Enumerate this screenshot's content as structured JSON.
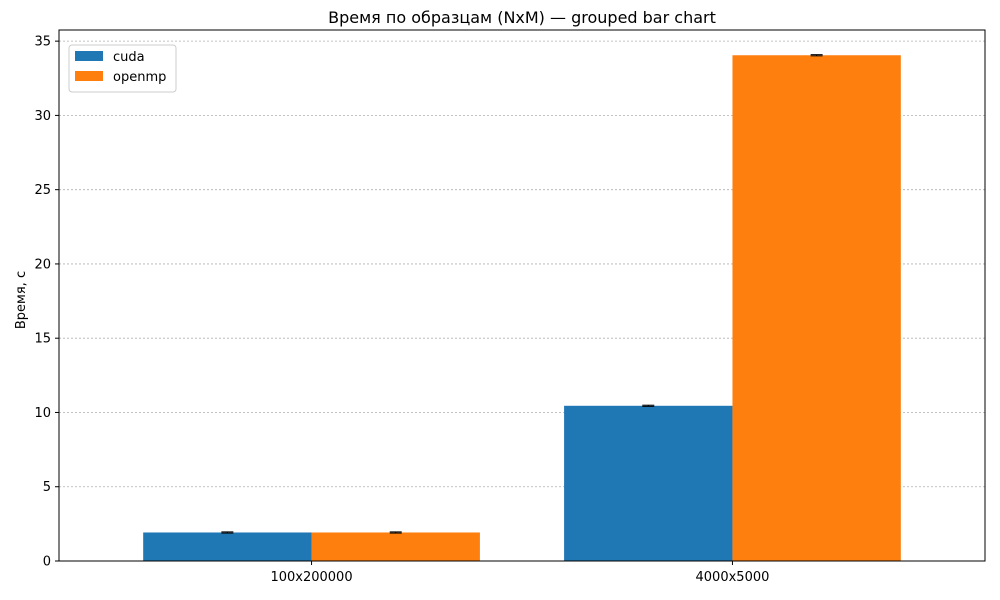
{
  "chart_data": {
    "type": "bar",
    "title": "Время по образцам (NxM) — grouped bar chart",
    "xlabel": "",
    "ylabel": "Время, с",
    "categories": [
      "100x200000",
      "4000x5000"
    ],
    "series": [
      {
        "name": "cuda",
        "color": "#1f77b4",
        "values": [
          1.92,
          10.45
        ],
        "errors": [
          0.04,
          0.04
        ]
      },
      {
        "name": "openmp",
        "color": "#ff7f0e",
        "values": [
          1.92,
          34.05
        ],
        "errors": [
          0.04,
          0.04
        ]
      }
    ],
    "ylim": [
      0,
      35.75
    ],
    "yticks": [
      0,
      5,
      10,
      15,
      20,
      25,
      30,
      35
    ],
    "grid": "y",
    "legend_position": "top-left"
  }
}
